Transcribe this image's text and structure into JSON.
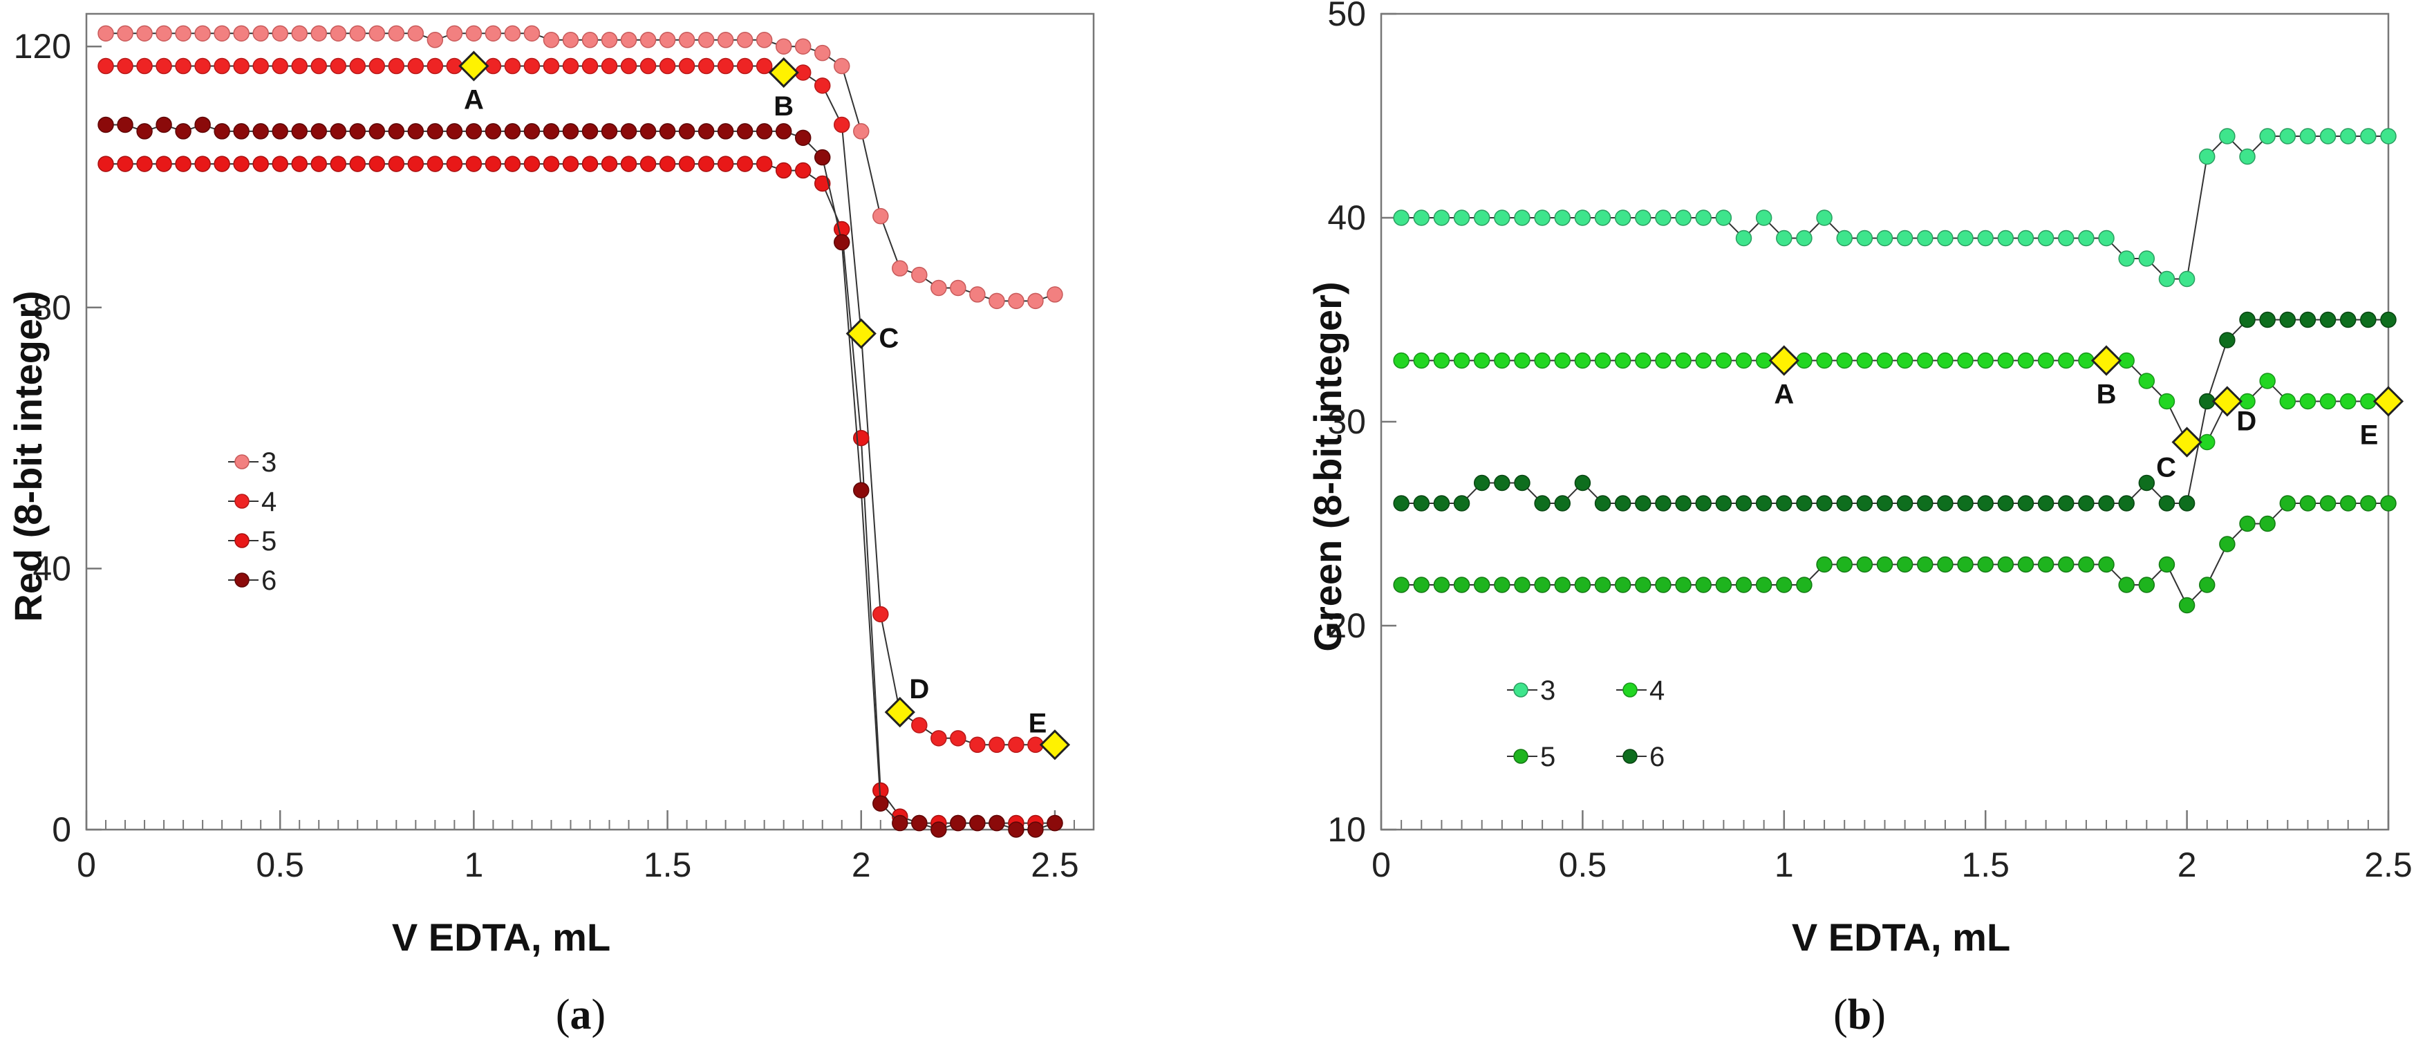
{
  "panels": [
    {
      "caption_open": "(",
      "caption_letter": "a",
      "caption_close": ")",
      "panel_name": "red"
    },
    {
      "caption_open": "(",
      "caption_letter": "b",
      "caption_close": ")",
      "panel_name": "green"
    }
  ],
  "chart_data": [
    {
      "type": "line",
      "title": "",
      "xlabel": "V EDTA, mL",
      "ylabel": "Red (8-bit integer)",
      "xlim": [
        0,
        2.6
      ],
      "ylim": [
        0,
        125
      ],
      "xticks": [
        0,
        0.5,
        1,
        1.5,
        2,
        2.5
      ],
      "xtick_labels": [
        "0",
        "0.5",
        "1",
        "1.5",
        "2",
        "2.5"
      ],
      "yticks": [
        0,
        40,
        80,
        120
      ],
      "ytick_labels": [
        "0",
        "40",
        "80",
        "120"
      ],
      "minor_x_step": 0.05,
      "legend_position": "center-left",
      "series": [
        {
          "name": "3",
          "color": "#F28080",
          "stroke": "#C85A5A",
          "x": [
            0.05,
            0.1,
            0.15,
            0.2,
            0.25,
            0.3,
            0.35,
            0.4,
            0.45,
            0.5,
            0.55,
            0.6,
            0.65,
            0.7,
            0.75,
            0.8,
            0.85,
            0.9,
            0.95,
            1.0,
            1.05,
            1.1,
            1.15,
            1.2,
            1.25,
            1.3,
            1.35,
            1.4,
            1.45,
            1.5,
            1.55,
            1.6,
            1.65,
            1.7,
            1.75,
            1.8,
            1.85,
            1.9,
            1.95,
            2.0,
            2.05,
            2.1,
            2.15,
            2.2,
            2.25,
            2.3,
            2.35,
            2.4,
            2.45,
            2.5
          ],
          "y": [
            122,
            122,
            122,
            122,
            122,
            122,
            122,
            122,
            122,
            122,
            122,
            122,
            122,
            122,
            122,
            122,
            122,
            121,
            122,
            122,
            122,
            122,
            122,
            121,
            121,
            121,
            121,
            121,
            121,
            121,
            121,
            121,
            121,
            121,
            121,
            120,
            120,
            119,
            117,
            107,
            94,
            86,
            85,
            83,
            83,
            82,
            81,
            81,
            81,
            82
          ]
        },
        {
          "name": "4",
          "color": "#EE2424",
          "stroke": "#B81818",
          "x": [
            0.05,
            0.1,
            0.15,
            0.2,
            0.25,
            0.3,
            0.35,
            0.4,
            0.45,
            0.5,
            0.55,
            0.6,
            0.65,
            0.7,
            0.75,
            0.8,
            0.85,
            0.9,
            0.95,
            1.0,
            1.05,
            1.1,
            1.15,
            1.2,
            1.25,
            1.3,
            1.35,
            1.4,
            1.45,
            1.5,
            1.55,
            1.6,
            1.65,
            1.7,
            1.75,
            1.8,
            1.85,
            1.9,
            1.95,
            2.0,
            2.05,
            2.1,
            2.15,
            2.2,
            2.25,
            2.3,
            2.35,
            2.4,
            2.45,
            2.5
          ],
          "y": [
            117,
            117,
            117,
            117,
            117,
            117,
            117,
            117,
            117,
            117,
            117,
            117,
            117,
            117,
            117,
            117,
            117,
            117,
            117,
            117,
            117,
            117,
            117,
            117,
            117,
            117,
            117,
            117,
            117,
            117,
            117,
            117,
            117,
            117,
            117,
            116,
            116,
            114,
            108,
            76,
            33,
            18,
            16,
            14,
            14,
            13,
            13,
            13,
            13,
            13
          ]
        },
        {
          "name": "5",
          "color": "#E81818",
          "stroke": "#A81010",
          "x": [
            0.05,
            0.1,
            0.15,
            0.2,
            0.25,
            0.3,
            0.35,
            0.4,
            0.45,
            0.5,
            0.55,
            0.6,
            0.65,
            0.7,
            0.75,
            0.8,
            0.85,
            0.9,
            0.95,
            1.0,
            1.05,
            1.1,
            1.15,
            1.2,
            1.25,
            1.3,
            1.35,
            1.4,
            1.45,
            1.5,
            1.55,
            1.6,
            1.65,
            1.7,
            1.75,
            1.8,
            1.85,
            1.9,
            1.95,
            2.0,
            2.05,
            2.1,
            2.15,
            2.2,
            2.25,
            2.3,
            2.35,
            2.4,
            2.45,
            2.5
          ],
          "y": [
            102,
            102,
            102,
            102,
            102,
            102,
            102,
            102,
            102,
            102,
            102,
            102,
            102,
            102,
            102,
            102,
            102,
            102,
            102,
            102,
            102,
            102,
            102,
            102,
            102,
            102,
            102,
            102,
            102,
            102,
            102,
            102,
            102,
            102,
            102,
            101,
            101,
            99,
            92,
            60,
            6,
            2,
            1,
            1,
            1,
            1,
            1,
            1,
            1,
            1
          ]
        },
        {
          "name": "6",
          "color": "#8B0A0A",
          "stroke": "#5E0606",
          "x": [
            0.05,
            0.1,
            0.15,
            0.2,
            0.25,
            0.3,
            0.35,
            0.4,
            0.45,
            0.5,
            0.55,
            0.6,
            0.65,
            0.7,
            0.75,
            0.8,
            0.85,
            0.9,
            0.95,
            1.0,
            1.05,
            1.1,
            1.15,
            1.2,
            1.25,
            1.3,
            1.35,
            1.4,
            1.45,
            1.5,
            1.55,
            1.6,
            1.65,
            1.7,
            1.75,
            1.8,
            1.85,
            1.9,
            1.95,
            2.0,
            2.05,
            2.1,
            2.15,
            2.2,
            2.25,
            2.3,
            2.35,
            2.4,
            2.45,
            2.5
          ],
          "y": [
            108,
            108,
            107,
            108,
            107,
            108,
            107,
            107,
            107,
            107,
            107,
            107,
            107,
            107,
            107,
            107,
            107,
            107,
            107,
            107,
            107,
            107,
            107,
            107,
            107,
            107,
            107,
            107,
            107,
            107,
            107,
            107,
            107,
            107,
            107,
            107,
            106,
            103,
            90,
            52,
            4,
            1,
            1,
            0,
            1,
            1,
            1,
            0,
            0,
            1
          ]
        }
      ],
      "markers": [
        {
          "label": "A",
          "x": 1.0,
          "y": 117
        },
        {
          "label": "B",
          "x": 1.8,
          "y": 116
        },
        {
          "label": "C",
          "x": 2.0,
          "y": 76
        },
        {
          "label": "D",
          "x": 2.1,
          "y": 18
        },
        {
          "label": "E",
          "x": 2.5,
          "y": 13
        }
      ],
      "marker_color": "#FFF200"
    },
    {
      "type": "line",
      "title": "",
      "xlabel": "V EDTA, mL",
      "ylabel": "Green (8-bit integer)",
      "xlim": [
        0,
        2.5
      ],
      "ylim": [
        10,
        50
      ],
      "xticks": [
        0,
        0.5,
        1,
        1.5,
        2,
        2.5
      ],
      "xtick_labels": [
        "0",
        "0.5",
        "1",
        "1.5",
        "2",
        "2.5"
      ],
      "yticks": [
        10,
        20,
        30,
        40,
        50
      ],
      "ytick_labels": [
        "10",
        "20",
        "30",
        "40",
        "50"
      ],
      "minor_x_step": 0.05,
      "legend_position": "bottom-left",
      "series": [
        {
          "name": "3",
          "color": "#3EE58C",
          "stroke": "#2A9E60",
          "x": [
            0.05,
            0.1,
            0.15,
            0.2,
            0.25,
            0.3,
            0.35,
            0.4,
            0.45,
            0.5,
            0.55,
            0.6,
            0.65,
            0.7,
            0.75,
            0.8,
            0.85,
            0.9,
            0.95,
            1.0,
            1.05,
            1.1,
            1.15,
            1.2,
            1.25,
            1.3,
            1.35,
            1.4,
            1.45,
            1.5,
            1.55,
            1.6,
            1.65,
            1.7,
            1.75,
            1.8,
            1.85,
            1.9,
            1.95,
            2.0,
            2.05,
            2.1,
            2.15,
            2.2,
            2.25,
            2.3,
            2.35,
            2.4,
            2.45,
            2.5
          ],
          "y": [
            40,
            40,
            40,
            40,
            40,
            40,
            40,
            40,
            40,
            40,
            40,
            40,
            40,
            40,
            40,
            40,
            40,
            39,
            40,
            39,
            39,
            40,
            39,
            39,
            39,
            39,
            39,
            39,
            39,
            39,
            39,
            39,
            39,
            39,
            39,
            39,
            38,
            38,
            37,
            37,
            43,
            44,
            43,
            44,
            44,
            44,
            44,
            44,
            44,
            44
          ]
        },
        {
          "name": "4",
          "color": "#22D622",
          "stroke": "#17951A",
          "x": [
            0.05,
            0.1,
            0.15,
            0.2,
            0.25,
            0.3,
            0.35,
            0.4,
            0.45,
            0.5,
            0.55,
            0.6,
            0.65,
            0.7,
            0.75,
            0.8,
            0.85,
            0.9,
            0.95,
            1.0,
            1.05,
            1.1,
            1.15,
            1.2,
            1.25,
            1.3,
            1.35,
            1.4,
            1.45,
            1.5,
            1.55,
            1.6,
            1.65,
            1.7,
            1.75,
            1.8,
            1.85,
            1.9,
            1.95,
            2.0,
            2.05,
            2.1,
            2.15,
            2.2,
            2.25,
            2.3,
            2.35,
            2.4,
            2.45,
            2.5
          ],
          "y": [
            33,
            33,
            33,
            33,
            33,
            33,
            33,
            33,
            33,
            33,
            33,
            33,
            33,
            33,
            33,
            33,
            33,
            33,
            33,
            33,
            33,
            33,
            33,
            33,
            33,
            33,
            33,
            33,
            33,
            33,
            33,
            33,
            33,
            33,
            33,
            33,
            33,
            32,
            31,
            29,
            29,
            31,
            31,
            32,
            31,
            31,
            31,
            31,
            31,
            31
          ]
        },
        {
          "name": "5",
          "color": "#1EB41E",
          "stroke": "#137A13",
          "x": [
            0.05,
            0.1,
            0.15,
            0.2,
            0.25,
            0.3,
            0.35,
            0.4,
            0.45,
            0.5,
            0.55,
            0.6,
            0.65,
            0.7,
            0.75,
            0.8,
            0.85,
            0.9,
            0.95,
            1.0,
            1.05,
            1.1,
            1.15,
            1.2,
            1.25,
            1.3,
            1.35,
            1.4,
            1.45,
            1.5,
            1.55,
            1.6,
            1.65,
            1.7,
            1.75,
            1.8,
            1.85,
            1.9,
            1.95,
            2.0,
            2.05,
            2.1,
            2.15,
            2.2,
            2.25,
            2.3,
            2.35,
            2.4,
            2.45,
            2.5
          ],
          "y": [
            22,
            22,
            22,
            22,
            22,
            22,
            22,
            22,
            22,
            22,
            22,
            22,
            22,
            22,
            22,
            22,
            22,
            22,
            22,
            22,
            22,
            23,
            23,
            23,
            23,
            23,
            23,
            23,
            23,
            23,
            23,
            23,
            23,
            23,
            23,
            23,
            22,
            22,
            23,
            21,
            22,
            24,
            25,
            25,
            26,
            26,
            26,
            26,
            26,
            26
          ]
        },
        {
          "name": "6",
          "color": "#0E6E1E",
          "stroke": "#084512",
          "x": [
            0.05,
            0.1,
            0.15,
            0.2,
            0.25,
            0.3,
            0.35,
            0.4,
            0.45,
            0.5,
            0.55,
            0.6,
            0.65,
            0.7,
            0.75,
            0.8,
            0.85,
            0.9,
            0.95,
            1.0,
            1.05,
            1.1,
            1.15,
            1.2,
            1.25,
            1.3,
            1.35,
            1.4,
            1.45,
            1.5,
            1.55,
            1.6,
            1.65,
            1.7,
            1.75,
            1.8,
            1.85,
            1.9,
            1.95,
            2.0,
            2.05,
            2.1,
            2.15,
            2.2,
            2.25,
            2.3,
            2.35,
            2.4,
            2.45,
            2.5
          ],
          "y": [
            26,
            26,
            26,
            26,
            27,
            27,
            27,
            26,
            26,
            27,
            26,
            26,
            26,
            26,
            26,
            26,
            26,
            26,
            26,
            26,
            26,
            26,
            26,
            26,
            26,
            26,
            26,
            26,
            26,
            26,
            26,
            26,
            26,
            26,
            26,
            26,
            26,
            27,
            26,
            26,
            31,
            34,
            35,
            35,
            35,
            35,
            35,
            35,
            35,
            35
          ]
        }
      ],
      "markers": [
        {
          "label": "A",
          "x": 1.0,
          "y": 33
        },
        {
          "label": "B",
          "x": 1.8,
          "y": 33
        },
        {
          "label": "C",
          "x": 2.0,
          "y": 29
        },
        {
          "label": "D",
          "x": 2.1,
          "y": 31
        },
        {
          "label": "E",
          "x": 2.5,
          "y": 31
        }
      ],
      "marker_color": "#FFF200"
    }
  ]
}
